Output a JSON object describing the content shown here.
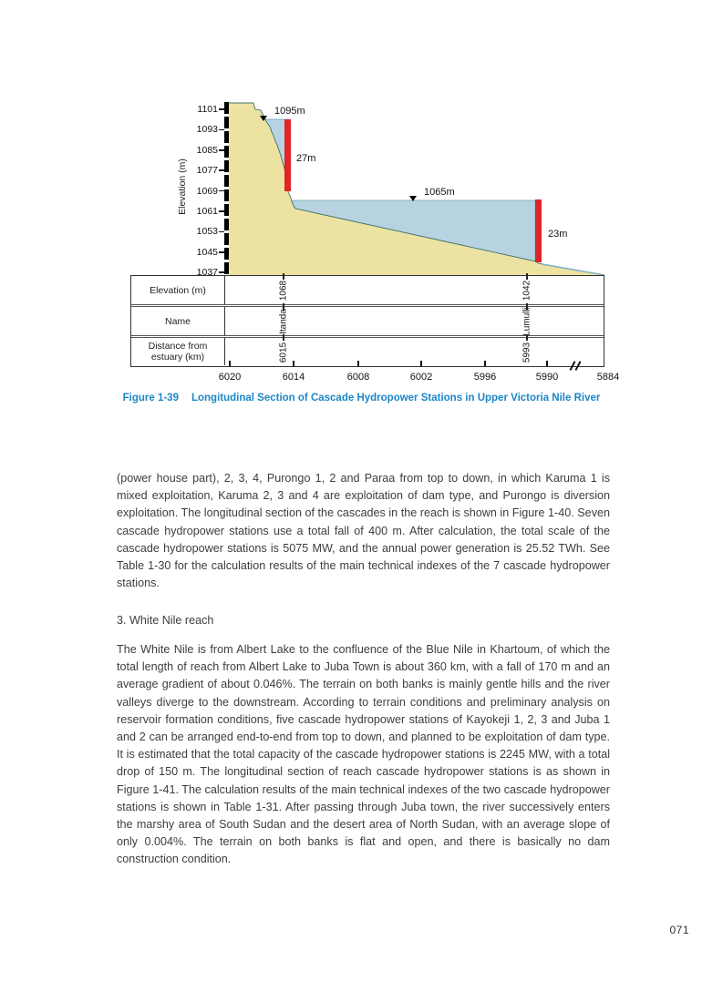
{
  "figure": {
    "caption_label": "Figure 1-39",
    "caption_title": "Longitudinal Section of Cascade Hydropower Stations in Upper Victoria Nile River",
    "accent_color": "#1c86c8"
  },
  "chart_data": {
    "type": "area",
    "title": "Longitudinal Section of Cascade Hydropower Stations in Upper Victoria Nile River",
    "ylabel": "Elevation (m)",
    "ylim": [
      1037,
      1101
    ],
    "y_ticks": [
      "1101",
      "1093",
      "1085",
      "1077",
      "1069",
      "1061",
      "1053",
      "1045",
      "1037"
    ],
    "x_ticks": [
      "6020",
      "6014",
      "6008",
      "6002",
      "5996",
      "5990",
      "5884"
    ],
    "x_axis_break_after_tick": "5990",
    "x_axis_unit": "Distance from estuary (km)",
    "water_levels": [
      {
        "label": "1095m",
        "elevation_m": 1095
      },
      {
        "label": "1065m",
        "elevation_m": 1065
      }
    ],
    "dams": [
      {
        "station": "Itanda",
        "drop_label": "27m",
        "drop_m": 27
      },
      {
        "station": "Lumulli",
        "drop_label": "23m",
        "drop_m": 23
      }
    ],
    "stations": [
      {
        "name": "Itanda",
        "elevation_m": "1068",
        "distance_km": "6015"
      },
      {
        "name": "Lumulli",
        "elevation_m": "1042",
        "distance_km": "5993"
      }
    ],
    "info_table_row_labels": [
      "Elevation (m)",
      "Name",
      "Distance from estuary (km)"
    ],
    "colors": {
      "terrain": "#ece3a2",
      "water": "#b7d3e1",
      "dam": "#e02427",
      "outline": "#44756d",
      "river_line": "#7fb2c6"
    }
  },
  "content": {
    "paragraph_1": "(power house part), 2, 3, 4, Purongo 1, 2 and Paraa from top to down, in which Karuma 1 is mixed exploitation, Karuma 2, 3 and 4 are exploitation of dam type, and Purongo is diversion exploitation. The longitudinal section of the cascades in the reach is shown in Figure 1-40. Seven cascade hydropower stations use a total fall of 400 m. After calculation, the total scale of the cascade hydropower stations is 5075 MW, and the annual power generation is 25.52 TWh. See Table 1-30 for the calculation results of the main technical indexes of the 7 cascade hydropower stations.",
    "section_heading": "3. White Nile reach",
    "paragraph_2": "The White Nile is from Albert Lake to the confluence of the Blue Nile in Khartoum, of which the total length of reach from Albert Lake to Juba Town is about 360 km, with a fall of 170 m and an average gradient of about 0.046%. The terrain on both banks is mainly gentle hills and the river valleys diverge to the downstream. According to terrain conditions and preliminary analysis on reservoir formation conditions, five cascade hydropower stations of Kayokeji 1, 2, 3 and Juba 1 and 2 can be arranged end-to-end from top to down, and planned to be exploitation of dam type.  It is estimated that the total capacity of the cascade hydropower stations is 2245 MW, with a total drop of 150 m. The longitudinal section of reach cascade hydropower stations is as shown in Figure 1-41. The calculation results of the main technical indexes of the two cascade hydropower stations is shown in Table 1-31. After passing through Juba town, the river successively enters the marshy area of South Sudan and the desert area of North Sudan, with an average slope of only 0.004%. The terrain on both banks is flat and open, and there is basically no dam construction condition."
  },
  "page": {
    "number": "071"
  }
}
